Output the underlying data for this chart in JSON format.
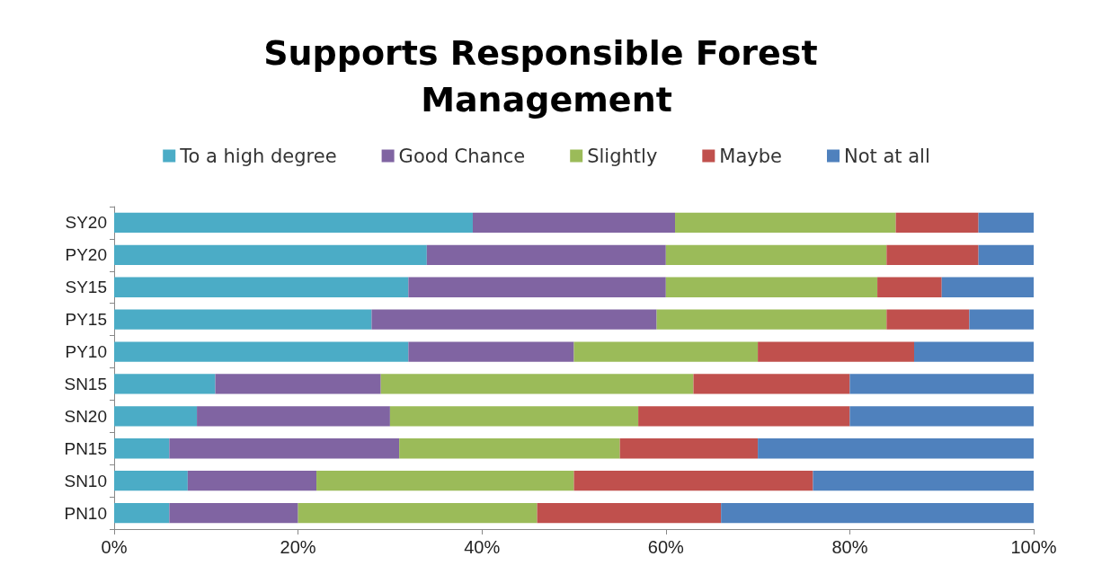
{
  "chart_data": {
    "type": "bar",
    "orientation": "horizontal",
    "stacked": true,
    "title": "Supports Responsible Forest Management",
    "categories": [
      "SY20",
      "PY20",
      "SY15",
      "PY15",
      "PY10",
      "SN15",
      "SN20",
      "PN15",
      "SN10",
      "PN10"
    ],
    "series": [
      {
        "name": "To a high degree",
        "color": "#4bacc6",
        "values": [
          39,
          34,
          32,
          28,
          32,
          11,
          9,
          6,
          8,
          6
        ]
      },
      {
        "name": "Good Chance",
        "color": "#8064a2",
        "values": [
          22,
          26,
          28,
          31,
          18,
          18,
          21,
          25,
          14,
          14
        ]
      },
      {
        "name": "Slightly",
        "color": "#9bbb59",
        "values": [
          24,
          24,
          23,
          25,
          20,
          34,
          27,
          24,
          28,
          26
        ]
      },
      {
        "name": "Maybe",
        "color": "#c0504d",
        "values": [
          9,
          10,
          7,
          9,
          17,
          17,
          23,
          15,
          26,
          20
        ]
      },
      {
        "name": "Not at all",
        "color": "#4f81bd",
        "values": [
          6,
          6,
          10,
          7,
          13,
          20,
          20,
          30,
          24,
          34
        ]
      }
    ],
    "xlim": [
      0,
      100
    ],
    "xticks": [
      {
        "value": 0,
        "label": "0%"
      },
      {
        "value": 20,
        "label": "20%"
      },
      {
        "value": 40,
        "label": "40%"
      },
      {
        "value": 60,
        "label": "60%"
      },
      {
        "value": 80,
        "label": "80%"
      },
      {
        "value": 100,
        "label": "100%"
      }
    ],
    "grid": false,
    "legend": "top"
  }
}
